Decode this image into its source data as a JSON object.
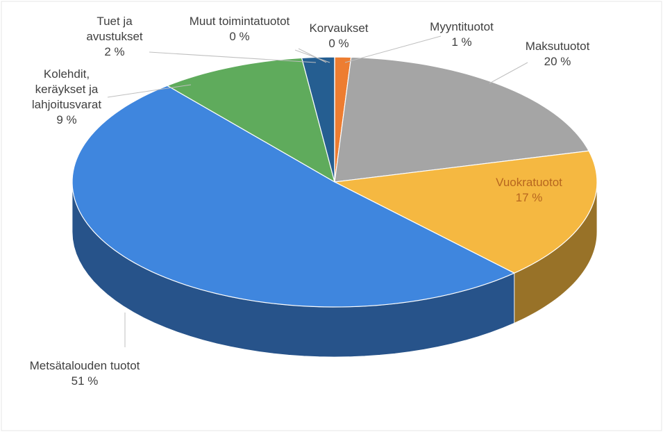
{
  "chart_data": {
    "type": "pie",
    "categories": [
      "Korvaukset",
      "Myyntituotot",
      "Maksutuotot",
      "Vuokratuotot",
      "Metsätalouden tuotot",
      "Kolehdit, keräykset ja lahjoitusvarat",
      "Tuet ja avustukset",
      "Muut toimintatuotot"
    ],
    "values": [
      0,
      1,
      20,
      17,
      51,
      9,
      2,
      0
    ],
    "value_labels": [
      "0 %",
      "1 %",
      "20 %",
      "17 %",
      "51 %",
      "9 %",
      "2 %",
      "0 %"
    ],
    "colors": [
      "#7f6000",
      "#ed7d31",
      "#a5a5a5",
      "#f5b841",
      "#3f86de",
      "#5fab5c",
      "#255e91",
      "#8a9bb0"
    ]
  }
}
